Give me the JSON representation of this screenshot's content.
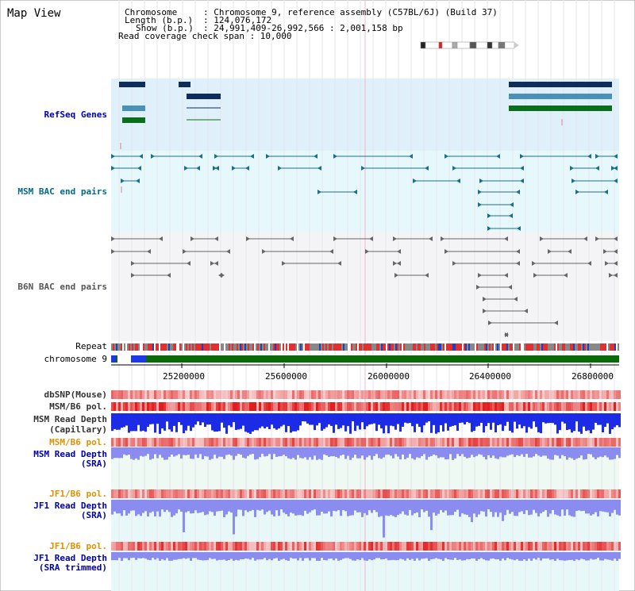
{
  "window": {
    "title": "Map View"
  },
  "header": {
    "chromosome_label": "Chromosome",
    "chromosome_value": ": Chromosome 9, reference assembly (C57BL/6J) (Build 37)",
    "length_label": "Length (b.p.)",
    "length_value": ": 124,076,172",
    "show_label": "Show (b.p.)",
    "show_value": ": 24,991,409-26,992,566 : 2,001,158 bp",
    "coverage_text": "Read coverage check span : 10,000"
  },
  "tracks": {
    "refseq": "RefSeq Genes",
    "msm_bac": "MSM BAC end pairs",
    "b6n_bac": "B6N BAC end pairs",
    "repeat": "Repeat",
    "chromosome": "chromosome 9",
    "dbsnp": "dbSNP(Mouse)",
    "msm_b6_pol_1": "MSM/B6 pol.",
    "msm_read_depth_cap_1": "MSM Read Depth",
    "msm_read_depth_cap_2": "(Capillary)",
    "msm_b6_pol_2": "MSM/B6 pol.",
    "msm_read_depth_sra_1": "MSM Read Depth",
    "msm_read_depth_sra_2": "(SRA)",
    "jf1_b6_pol_1": "JF1/B6 pol.",
    "jf1_read_depth_sra_1": "JF1 Read Depth",
    "jf1_read_depth_sra_2": "(SRA)",
    "jf1_b6_pol_2": "JF1/B6 pol.",
    "jf1_read_depth_trim_1": "JF1 Read Depth",
    "jf1_read_depth_trim_2": "(SRA trimmed)"
  },
  "axis": {
    "ticks": [
      "25200000",
      "25600000",
      "26000000",
      "26400000",
      "26800000"
    ]
  },
  "colors": {
    "refseq_bg": "#dff0fa",
    "bac_msm_bg": "#e6f8fb",
    "depth_bg": "#eef9f4",
    "gene_dark": "#0d2d5c",
    "gene_light": "#4a90b8",
    "gene_green": "#0a6e1a",
    "bac_teal": "#1a6f8a",
    "bac_gray": "#666666",
    "depth_blue": "#1c2be6",
    "depth_light": "#8a8cf0",
    "chrom_green": "#0a6a0a",
    "chrom_blue": "#1a3ae8"
  }
}
